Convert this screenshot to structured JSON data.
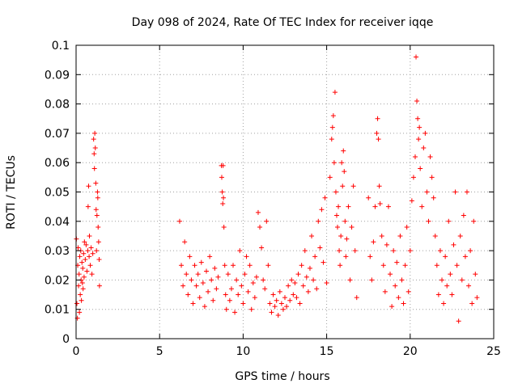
{
  "chart_data": {
    "type": "scatter",
    "title": "Day 098 of 2024, Rate Of TEC Index for receiver iqqe",
    "xlabel": "GPS time / hours",
    "ylabel": "ROTI / TECUs",
    "xlim": [
      0,
      25
    ],
    "ylim": [
      0,
      0.1
    ],
    "x_ticks": [
      0,
      5,
      10,
      15,
      20,
      25
    ],
    "x_tick_labels": [
      "0",
      "5",
      "10",
      "15",
      "20",
      "25"
    ],
    "y_ticks": [
      0,
      0.01,
      0.02,
      0.03,
      0.04,
      0.05,
      0.06,
      0.07,
      0.08,
      0.09,
      0.1
    ],
    "y_tick_labels": [
      "0",
      "0.01",
      "0.02",
      "0.03",
      "0.04",
      "0.05",
      "0.06",
      "0.07",
      "0.08",
      "0.09",
      "0.1"
    ],
    "grid": true,
    "marker": "+",
    "color": "#ff0000",
    "series": [
      {
        "name": "ROTI",
        "points": [
          [
            0.02,
            0.034
          ],
          [
            0.05,
            0.012
          ],
          [
            0.08,
            0.007
          ],
          [
            0.1,
            0.025
          ],
          [
            0.12,
            0.031
          ],
          [
            0.15,
            0.018
          ],
          [
            0.18,
            0.022
          ],
          [
            0.2,
            0.009
          ],
          [
            0.22,
            0.028
          ],
          [
            0.25,
            0.015
          ],
          [
            0.28,
            0.03
          ],
          [
            0.3,
            0.02
          ],
          [
            0.32,
            0.013
          ],
          [
            0.35,
            0.026
          ],
          [
            0.38,
            0.019
          ],
          [
            0.4,
            0.024
          ],
          [
            0.42,
            0.017
          ],
          [
            0.45,
            0.029
          ],
          [
            0.48,
            0.021
          ],
          [
            0.5,
            0.033
          ],
          [
            0.55,
            0.027
          ],
          [
            0.6,
            0.032
          ],
          [
            0.65,
            0.023
          ],
          [
            0.7,
            0.03
          ],
          [
            0.72,
            0.045
          ],
          [
            0.75,
            0.052
          ],
          [
            0.78,
            0.028
          ],
          [
            0.8,
            0.035
          ],
          [
            0.85,
            0.025
          ],
          [
            0.9,
            0.031
          ],
          [
            0.95,
            0.022
          ],
          [
            1.0,
            0.029
          ],
          [
            1.05,
            0.068
          ],
          [
            1.08,
            0.063
          ],
          [
            1.1,
            0.058
          ],
          [
            1.12,
            0.07
          ],
          [
            1.15,
            0.065
          ],
          [
            1.18,
            0.053
          ],
          [
            1.2,
            0.044
          ],
          [
            1.22,
            0.03
          ],
          [
            1.25,
            0.042
          ],
          [
            1.28,
            0.05
          ],
          [
            1.3,
            0.048
          ],
          [
            1.32,
            0.038
          ],
          [
            1.35,
            0.033
          ],
          [
            1.38,
            0.027
          ],
          [
            1.4,
            0.018
          ],
          [
            6.2,
            0.04
          ],
          [
            6.3,
            0.025
          ],
          [
            6.4,
            0.018
          ],
          [
            6.5,
            0.033
          ],
          [
            6.6,
            0.022
          ],
          [
            6.7,
            0.015
          ],
          [
            6.8,
            0.028
          ],
          [
            6.9,
            0.02
          ],
          [
            7.0,
            0.012
          ],
          [
            7.1,
            0.025
          ],
          [
            7.2,
            0.018
          ],
          [
            7.3,
            0.022
          ],
          [
            7.4,
            0.014
          ],
          [
            7.5,
            0.026
          ],
          [
            7.6,
            0.019
          ],
          [
            7.7,
            0.011
          ],
          [
            7.8,
            0.023
          ],
          [
            7.9,
            0.016
          ],
          [
            8.0,
            0.028
          ],
          [
            8.1,
            0.02
          ],
          [
            8.2,
            0.013
          ],
          [
            8.3,
            0.024
          ],
          [
            8.4,
            0.017
          ],
          [
            8.5,
            0.021
          ],
          [
            8.7,
            0.059
          ],
          [
            8.72,
            0.055
          ],
          [
            8.75,
            0.05
          ],
          [
            8.78,
            0.046
          ],
          [
            8.8,
            0.059
          ],
          [
            8.82,
            0.048
          ],
          [
            8.85,
            0.038
          ],
          [
            8.9,
            0.025
          ],
          [
            8.95,
            0.015
          ],
          [
            9.0,
            0.01
          ],
          [
            9.1,
            0.022
          ],
          [
            9.2,
            0.013
          ],
          [
            9.3,
            0.017
          ],
          [
            9.4,
            0.025
          ],
          [
            9.5,
            0.009
          ],
          [
            9.6,
            0.02
          ],
          [
            9.7,
            0.015
          ],
          [
            9.8,
            0.03
          ],
          [
            9.9,
            0.018
          ],
          [
            10.0,
            0.012
          ],
          [
            10.1,
            0.022
          ],
          [
            10.2,
            0.028
          ],
          [
            10.3,
            0.016
          ],
          [
            10.4,
            0.025
          ],
          [
            10.5,
            0.01
          ],
          [
            10.6,
            0.019
          ],
          [
            10.7,
            0.014
          ],
          [
            10.8,
            0.021
          ],
          [
            10.9,
            0.043
          ],
          [
            11.0,
            0.038
          ],
          [
            11.1,
            0.031
          ],
          [
            11.2,
            0.02
          ],
          [
            11.3,
            0.017
          ],
          [
            11.4,
            0.04
          ],
          [
            11.5,
            0.025
          ],
          [
            11.6,
            0.012
          ],
          [
            11.7,
            0.009
          ],
          [
            11.8,
            0.015
          ],
          [
            11.9,
            0.011
          ],
          [
            12.0,
            0.013
          ],
          [
            12.1,
            0.008
          ],
          [
            12.2,
            0.016
          ],
          [
            12.3,
            0.012
          ],
          [
            12.4,
            0.01
          ],
          [
            12.5,
            0.014
          ],
          [
            12.6,
            0.011
          ],
          [
            12.7,
            0.018
          ],
          [
            12.8,
            0.013
          ],
          [
            12.9,
            0.02
          ],
          [
            13.0,
            0.015
          ],
          [
            13.1,
            0.019
          ],
          [
            13.2,
            0.014
          ],
          [
            13.3,
            0.022
          ],
          [
            13.4,
            0.012
          ],
          [
            13.5,
            0.025
          ],
          [
            13.6,
            0.018
          ],
          [
            13.7,
            0.03
          ],
          [
            13.8,
            0.021
          ],
          [
            13.9,
            0.016
          ],
          [
            14.0,
            0.024
          ],
          [
            14.1,
            0.035
          ],
          [
            14.2,
            0.02
          ],
          [
            14.3,
            0.028
          ],
          [
            14.4,
            0.017
          ],
          [
            14.5,
            0.04
          ],
          [
            14.6,
            0.031
          ],
          [
            14.7,
            0.044
          ],
          [
            14.8,
            0.026
          ],
          [
            14.9,
            0.048
          ],
          [
            15.0,
            0.019
          ],
          [
            15.2,
            0.055
          ],
          [
            15.3,
            0.068
          ],
          [
            15.35,
            0.072
          ],
          [
            15.4,
            0.076
          ],
          [
            15.45,
            0.06
          ],
          [
            15.5,
            0.084
          ],
          [
            15.55,
            0.05
          ],
          [
            15.6,
            0.042
          ],
          [
            15.65,
            0.038
          ],
          [
            15.7,
            0.045
          ],
          [
            15.75,
            0.03
          ],
          [
            15.8,
            0.025
          ],
          [
            15.85,
            0.035
          ],
          [
            15.9,
            0.06
          ],
          [
            15.95,
            0.052
          ],
          [
            16.0,
            0.064
          ],
          [
            16.05,
            0.057
          ],
          [
            16.1,
            0.04
          ],
          [
            16.15,
            0.028
          ],
          [
            16.2,
            0.034
          ],
          [
            16.3,
            0.045
          ],
          [
            16.4,
            0.02
          ],
          [
            16.5,
            0.038
          ],
          [
            16.6,
            0.052
          ],
          [
            16.7,
            0.03
          ],
          [
            16.8,
            0.014
          ],
          [
            17.5,
            0.048
          ],
          [
            17.6,
            0.028
          ],
          [
            17.7,
            0.02
          ],
          [
            17.8,
            0.033
          ],
          [
            17.9,
            0.045
          ],
          [
            18.0,
            0.07
          ],
          [
            18.05,
            0.075
          ],
          [
            18.1,
            0.068
          ],
          [
            18.15,
            0.052
          ],
          [
            18.2,
            0.046
          ],
          [
            18.3,
            0.035
          ],
          [
            18.4,
            0.025
          ],
          [
            18.5,
            0.016
          ],
          [
            18.6,
            0.032
          ],
          [
            18.7,
            0.045
          ],
          [
            18.8,
            0.022
          ],
          [
            18.9,
            0.011
          ],
          [
            19.0,
            0.03
          ],
          [
            19.1,
            0.018
          ],
          [
            19.2,
            0.026
          ],
          [
            19.3,
            0.014
          ],
          [
            19.4,
            0.035
          ],
          [
            19.5,
            0.02
          ],
          [
            19.6,
            0.012
          ],
          [
            19.7,
            0.025
          ],
          [
            19.8,
            0.038
          ],
          [
            19.9,
            0.016
          ],
          [
            20.0,
            0.03
          ],
          [
            20.1,
            0.047
          ],
          [
            20.2,
            0.055
          ],
          [
            20.3,
            0.062
          ],
          [
            20.35,
            0.096
          ],
          [
            20.4,
            0.081
          ],
          [
            20.45,
            0.075
          ],
          [
            20.5,
            0.068
          ],
          [
            20.55,
            0.072
          ],
          [
            20.6,
            0.058
          ],
          [
            20.7,
            0.045
          ],
          [
            20.8,
            0.065
          ],
          [
            20.9,
            0.07
          ],
          [
            21.0,
            0.05
          ],
          [
            21.1,
            0.04
          ],
          [
            21.2,
            0.062
          ],
          [
            21.3,
            0.055
          ],
          [
            21.4,
            0.048
          ],
          [
            21.5,
            0.035
          ],
          [
            21.6,
            0.025
          ],
          [
            21.7,
            0.015
          ],
          [
            21.8,
            0.03
          ],
          [
            21.9,
            0.02
          ],
          [
            22.0,
            0.012
          ],
          [
            22.1,
            0.028
          ],
          [
            22.2,
            0.018
          ],
          [
            22.3,
            0.04
          ],
          [
            22.4,
            0.022
          ],
          [
            22.5,
            0.015
          ],
          [
            22.6,
            0.032
          ],
          [
            22.7,
            0.05
          ],
          [
            22.8,
            0.025
          ],
          [
            22.9,
            0.006
          ],
          [
            23.0,
            0.035
          ],
          [
            23.1,
            0.02
          ],
          [
            23.2,
            0.042
          ],
          [
            23.3,
            0.028
          ],
          [
            23.4,
            0.05
          ],
          [
            23.5,
            0.018
          ],
          [
            23.6,
            0.03
          ],
          [
            23.7,
            0.012
          ],
          [
            23.8,
            0.04
          ],
          [
            23.9,
            0.022
          ],
          [
            24.0,
            0.014
          ]
        ]
      }
    ]
  }
}
